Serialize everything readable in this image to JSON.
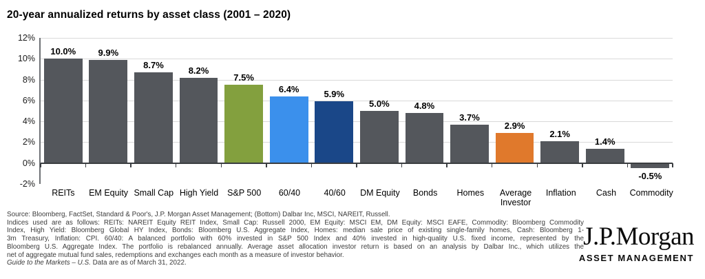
{
  "title": "20-year annualized returns by asset class (2001 – 2020)",
  "chart_data": {
    "type": "bar",
    "title": "20-year annualized returns by asset class (2001 – 2020)",
    "categories": [
      "REITs",
      "EM Equity",
      "Small Cap",
      "High Yield",
      "S&P 500",
      "60/40",
      "40/60",
      "DM Equity",
      "Bonds",
      "Homes",
      "Average Investor",
      "Inflation",
      "Cash",
      "Commodity"
    ],
    "values": [
      10.0,
      9.9,
      8.7,
      8.2,
      7.5,
      6.4,
      5.9,
      5.0,
      4.8,
      3.7,
      2.9,
      2.1,
      1.4,
      -0.5
    ],
    "value_labels": [
      "10.0%",
      "9.9%",
      "8.7%",
      "8.2%",
      "7.5%",
      "6.4%",
      "5.9%",
      "5.0%",
      "4.8%",
      "3.7%",
      "2.9%",
      "2.1%",
      "1.4%",
      "-0.5%"
    ],
    "bar_colors": [
      "#54575c",
      "#54575c",
      "#54575c",
      "#54575c",
      "#83a03e",
      "#3b90ec",
      "#1a4788",
      "#54575c",
      "#54575c",
      "#54575c",
      "#e0792c",
      "#54575c",
      "#54575c",
      "#54575c"
    ],
    "default_bar_color": "#54575c",
    "highlight_colors": {
      "sp500": "#83a03e",
      "60_40": "#3b90ec",
      "40_60": "#1a4788",
      "average_investor": "#e0792c"
    },
    "xlabel": "",
    "ylabel": "",
    "ylim": [
      -2,
      12
    ],
    "ytick_values": [
      12,
      10,
      8,
      6,
      4,
      2,
      0,
      -2
    ],
    "ytick_labels": [
      "12%",
      "10%",
      "8%",
      "6%",
      "4%",
      "2%",
      "0%",
      "-2%"
    ],
    "grid": "horizontal",
    "legend": "none"
  },
  "footer": {
    "lines": [
      "Source: Bloomberg, FactSet, Standard & Poor's, J.P. Morgan Asset Management; (Bottom) Dalbar Inc, MSCI, NAREIT, Russell.",
      "Indices used are as follows: REITs: NAREIT Equity REIT Index, Small Cap: Russell 2000, EM Equity: MSCI EM, DM Equity: MSCI EAFE, Commodity: Bloomberg Commodity",
      "Index, High Yield: Bloomberg Global HY Index, Bonds: Bloomberg U.S. Aggregate Index, Homes: median sale price of existing single-family homes, Cash: Bloomberg 1-",
      "3m Treasury, Inflation: CPI. 60/40: A balanced portfolio with 60% invested in S&P 500 Index and 40% invested in high-quality U.S. fixed income, represented by the",
      "Bloomberg U.S. Aggregate Index. The portfolio is rebalanced annually. Average asset allocation investor return is based on an analysis by Dalbar Inc., which utilizes the",
      "net of aggregate mutual fund sales, redemptions and exchanges each month as a measure of investor behavior."
    ],
    "source_line_italic": "Guide to the Markets – U.S.",
    "source_line_rest": " Data are as of March 31, 2022."
  },
  "logo": {
    "brand": "J.P.Morgan",
    "sub": "ASSET MANAGEMENT"
  }
}
